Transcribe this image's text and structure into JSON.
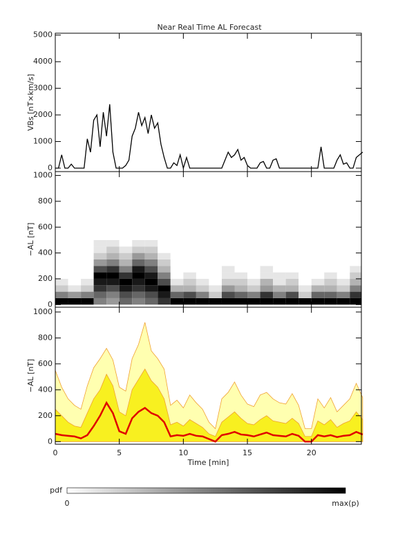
{
  "chart_data": [
    {
      "type": "line",
      "title": "Near Real Time AL Forecast",
      "ylabel": "VBs [nT×km/s]",
      "x": [
        0,
        0.25,
        0.5,
        0.75,
        1,
        1.25,
        1.5,
        1.75,
        2,
        2.25,
        2.5,
        2.75,
        3,
        3.25,
        3.5,
        3.75,
        4,
        4.25,
        4.5,
        4.75,
        5,
        5.25,
        5.5,
        5.75,
        6,
        6.25,
        6.5,
        6.75,
        7,
        7.25,
        7.5,
        7.75,
        8,
        8.25,
        8.5,
        8.75,
        9,
        9.25,
        9.5,
        9.75,
        10,
        10.25,
        10.5,
        10.75,
        11,
        11.25,
        11.5,
        11.75,
        12,
        12.25,
        12.5,
        12.75,
        13,
        13.25,
        13.5,
        13.75,
        14,
        14.25,
        14.5,
        14.75,
        15,
        15.25,
        15.5,
        15.75,
        16,
        16.25,
        16.5,
        16.75,
        17,
        17.25,
        17.5,
        17.75,
        18,
        18.25,
        18.5,
        18.75,
        19,
        19.25,
        19.5,
        19.75,
        20,
        20.25,
        20.5,
        20.75,
        21,
        21.25,
        21.5,
        21.75,
        22,
        22.25,
        22.5,
        22.75,
        23,
        23.25,
        23.5,
        23.75,
        24
      ],
      "values": [
        0,
        0,
        500,
        0,
        0,
        150,
        0,
        0,
        0,
        0,
        1100,
        600,
        1800,
        2000,
        800,
        2100,
        1200,
        2400,
        600,
        0,
        0,
        0,
        100,
        300,
        1200,
        1500,
        2100,
        1600,
        1900,
        1300,
        2000,
        1500,
        1700,
        900,
        400,
        0,
        0,
        200,
        100,
        500,
        0,
        400,
        0,
        0,
        0,
        0,
        0,
        0,
        0,
        0,
        0,
        0,
        0,
        300,
        600,
        400,
        500,
        700,
        300,
        400,
        100,
        0,
        0,
        0,
        200,
        250,
        0,
        0,
        300,
        350,
        0,
        0,
        0,
        0,
        0,
        0,
        0,
        0,
        0,
        0,
        0,
        0,
        0,
        800,
        0,
        0,
        0,
        0,
        300,
        500,
        150,
        200,
        0,
        0,
        400,
        500,
        600
      ],
      "color": "#000000",
      "xlim": [
        0,
        23.9
      ],
      "xticks": [
        0,
        5,
        10,
        15,
        20
      ],
      "ylim": [
        -130,
        5070
      ],
      "yticks": [
        0,
        1000,
        2000,
        3000,
        4000,
        5000
      ]
    },
    {
      "type": "heatmap",
      "ylabel": "−AL [nT]",
      "xbins": [
        0,
        1,
        2,
        3,
        4,
        5,
        6,
        7,
        8,
        9,
        10,
        11,
        12,
        13,
        14,
        15,
        16,
        17,
        18,
        19,
        20,
        21,
        22,
        23,
        24
      ],
      "ybins": [
        0,
        50,
        100,
        150,
        200,
        250,
        300,
        350,
        400,
        450,
        500
      ],
      "z": [
        [
          1,
          1,
          1,
          0.5,
          0.4,
          0.6,
          0.5,
          0.6,
          0.8,
          1,
          1,
          1,
          1,
          1,
          1,
          1,
          1,
          1,
          1,
          1,
          1,
          1,
          1,
          1
        ],
        [
          0.5,
          0.4,
          0.5,
          0.6,
          0.5,
          0.7,
          0.6,
          0.7,
          0.9,
          0.6,
          0.7,
          0.5,
          0.2,
          0.7,
          0.6,
          0.5,
          0.8,
          0.5,
          0.7,
          0.2,
          0.6,
          0.6,
          0.5,
          0.8
        ],
        [
          0.2,
          0.1,
          0.2,
          0.8,
          0.7,
          0.9,
          0.8,
          0.9,
          1,
          0.3,
          0.3,
          0.2,
          0.1,
          0.4,
          0.3,
          0.2,
          0.4,
          0.3,
          0.3,
          0.1,
          0.3,
          0.3,
          0.2,
          0.5
        ],
        [
          0.1,
          0,
          0.1,
          0.9,
          0.9,
          1,
          0.9,
          1,
          0.7,
          0.1,
          0.2,
          0.1,
          0,
          0.2,
          0.2,
          0.1,
          0.3,
          0.1,
          0.2,
          0,
          0.1,
          0.2,
          0.1,
          0.3
        ],
        [
          0,
          0,
          0,
          1,
          1,
          0.8,
          1,
          0.9,
          0.5,
          0,
          0.1,
          0,
          0,
          0.1,
          0.1,
          0,
          0.1,
          0.1,
          0.1,
          0,
          0,
          0.1,
          0,
          0.2
        ],
        [
          0,
          0,
          0,
          0.7,
          0.8,
          0.5,
          0.9,
          0.7,
          0.3,
          0,
          0,
          0,
          0,
          0.1,
          0,
          0,
          0.1,
          0,
          0,
          0,
          0,
          0,
          0,
          0.1
        ],
        [
          0,
          0,
          0,
          0.4,
          0.5,
          0.3,
          0.6,
          0.5,
          0.2,
          0,
          0,
          0,
          0,
          0,
          0,
          0,
          0,
          0,
          0,
          0,
          0,
          0,
          0,
          0
        ],
        [
          0,
          0,
          0,
          0.2,
          0.3,
          0.2,
          0.4,
          0.3,
          0.1,
          0,
          0,
          0,
          0,
          0,
          0,
          0,
          0,
          0,
          0,
          0,
          0,
          0,
          0,
          0
        ],
        [
          0,
          0,
          0,
          0.1,
          0.2,
          0.1,
          0.2,
          0.2,
          0,
          0,
          0,
          0,
          0,
          0,
          0,
          0,
          0,
          0,
          0,
          0,
          0,
          0,
          0,
          0
        ],
        [
          0,
          0,
          0,
          0.1,
          0.1,
          0,
          0.1,
          0.1,
          0,
          0,
          0,
          0,
          0,
          0,
          0,
          0,
          0,
          0,
          0,
          0,
          0,
          0,
          0,
          0
        ]
      ],
      "xlim": [
        0,
        23.9
      ],
      "xticks": [
        0,
        5,
        10,
        15,
        20
      ],
      "ylim": [
        -20,
        1030
      ],
      "yticks": [
        0,
        200,
        400,
        600,
        800,
        1000
      ],
      "colorbar": {
        "label": "pdf",
        "labels": [
          "0",
          "max(p)"
        ]
      }
    },
    {
      "type": "area",
      "ylabel": "−AL [nT]",
      "xlabel": "Time [min]",
      "x": [
        0,
        0.5,
        1,
        1.5,
        2,
        2.5,
        3,
        3.5,
        4,
        4.5,
        5,
        5.5,
        6,
        6.5,
        7,
        7.5,
        8,
        8.5,
        9,
        9.5,
        10,
        10.5,
        11,
        11.5,
        12,
        12.5,
        13,
        13.5,
        14,
        14.5,
        15,
        15.5,
        16,
        16.5,
        17,
        17.5,
        18,
        18.5,
        19,
        19.5,
        20,
        20.5,
        21,
        21.5,
        22,
        22.5,
        23,
        23.5,
        24
      ],
      "series": [
        {
          "color": "#ffffb0",
          "values": [
            550,
            420,
            330,
            280,
            250,
            430,
            570,
            640,
            720,
            630,
            420,
            390,
            640,
            750,
            920,
            700,
            640,
            560,
            280,
            320,
            260,
            360,
            300,
            250,
            150,
            100,
            330,
            380,
            460,
            360,
            290,
            270,
            360,
            380,
            330,
            300,
            290,
            370,
            280,
            100,
            100,
            330,
            260,
            340,
            230,
            280,
            330,
            450,
            340
          ]
        },
        {
          "color": "#f8f020",
          "values": [
            250,
            200,
            150,
            120,
            110,
            220,
            330,
            400,
            520,
            430,
            230,
            200,
            400,
            480,
            560,
            470,
            420,
            330,
            130,
            150,
            120,
            170,
            140,
            110,
            60,
            40,
            150,
            190,
            230,
            180,
            140,
            130,
            170,
            200,
            160,
            150,
            140,
            180,
            140,
            40,
            40,
            160,
            130,
            170,
            110,
            140,
            160,
            230,
            170
          ]
        },
        {
          "color": "#e00000",
          "values": [
            60,
            50,
            45,
            40,
            25,
            50,
            120,
            200,
            300,
            220,
            80,
            60,
            180,
            230,
            260,
            220,
            200,
            150,
            40,
            50,
            45,
            60,
            45,
            40,
            20,
            0,
            50,
            60,
            75,
            55,
            50,
            40,
            55,
            70,
            50,
            45,
            40,
            60,
            45,
            0,
            0,
            50,
            40,
            50,
            35,
            45,
            50,
            75,
            55
          ]
        }
      ],
      "xlim": [
        0,
        23.9
      ],
      "xticks": [
        0,
        5,
        10,
        15,
        20
      ],
      "ylim": [
        -20,
        1037
      ],
      "yticks": [
        0,
        200,
        400,
        600,
        800,
        1000
      ]
    }
  ]
}
